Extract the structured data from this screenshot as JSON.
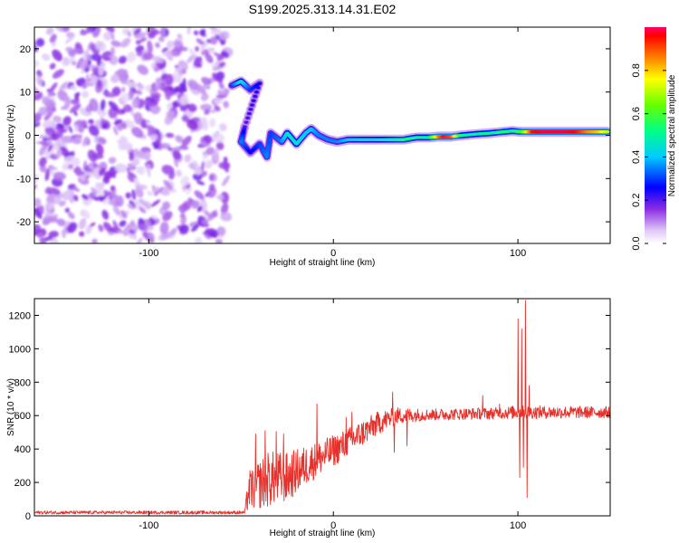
{
  "title": "S199.2025.313.14.31.E02",
  "chart_data": [
    {
      "type": "heatmap",
      "xlabel": "Height of straight line (km)",
      "ylabel": "Frequency (Hz)",
      "xlim": [
        -162,
        150
      ],
      "ylim": [
        -25,
        25
      ],
      "xticks": [
        {
          "value": -100,
          "label": "-100"
        },
        {
          "value": 0,
          "label": "0"
        },
        {
          "value": 100,
          "label": "100"
        }
      ],
      "yticks": [
        {
          "value": 20,
          "label": "20"
        },
        {
          "value": 10,
          "label": "10"
        },
        {
          "value": 0,
          "label": "0"
        },
        {
          "value": -10,
          "label": "-10"
        },
        {
          "value": -20,
          "label": "-20"
        }
      ],
      "noise_region_x": [
        -162,
        -58
      ],
      "ridge": [
        {
          "x": -55,
          "y": 11.5,
          "a": 0.3
        },
        {
          "x": -50,
          "y": 12.5,
          "a": 0.45
        },
        {
          "x": -45,
          "y": 10.5,
          "a": 0.3
        },
        {
          "x": -40,
          "y": 12.0,
          "a": 0.25
        },
        {
          "x": -48,
          "y": 2.0,
          "a": 0.2
        },
        {
          "x": -50,
          "y": -1.5,
          "a": 0.35
        },
        {
          "x": -45,
          "y": -4.0,
          "a": 0.25
        },
        {
          "x": -40,
          "y": -2.0,
          "a": 0.3
        },
        {
          "x": -36,
          "y": -5.0,
          "a": 0.35
        },
        {
          "x": -34,
          "y": 0.5,
          "a": 0.3
        },
        {
          "x": -28,
          "y": -1.5,
          "a": 0.35
        },
        {
          "x": -25,
          "y": 0.5,
          "a": 0.45
        },
        {
          "x": -20,
          "y": -2.0,
          "a": 0.45
        },
        {
          "x": -15,
          "y": 0.5,
          "a": 0.4
        },
        {
          "x": -12,
          "y": 1.5,
          "a": 0.4
        },
        {
          "x": -8,
          "y": 0.0,
          "a": 0.35
        },
        {
          "x": -3,
          "y": -1.0,
          "a": 0.35
        },
        {
          "x": 2,
          "y": -1.5,
          "a": 0.35
        },
        {
          "x": 8,
          "y": -1.0,
          "a": 0.4
        },
        {
          "x": 15,
          "y": -1.0,
          "a": 0.45
        },
        {
          "x": 22,
          "y": -1.0,
          "a": 0.45
        },
        {
          "x": 30,
          "y": -1.0,
          "a": 0.5
        },
        {
          "x": 38,
          "y": -1.0,
          "a": 0.55
        },
        {
          "x": 45,
          "y": -0.5,
          "a": 0.5
        },
        {
          "x": 52,
          "y": -0.5,
          "a": 0.5
        },
        {
          "x": 57,
          "y": -0.3,
          "a": 0.85
        },
        {
          "x": 60,
          "y": -0.3,
          "a": 0.95
        },
        {
          "x": 64,
          "y": -0.3,
          "a": 0.9
        },
        {
          "x": 70,
          "y": 0.0,
          "a": 0.5
        },
        {
          "x": 78,
          "y": 0.3,
          "a": 0.5
        },
        {
          "x": 85,
          "y": 0.5,
          "a": 0.5
        },
        {
          "x": 92,
          "y": 0.8,
          "a": 0.55
        },
        {
          "x": 97,
          "y": 1.0,
          "a": 0.5
        },
        {
          "x": 102,
          "y": 0.8,
          "a": 0.6
        },
        {
          "x": 108,
          "y": 0.8,
          "a": 0.95
        },
        {
          "x": 114,
          "y": 0.8,
          "a": 0.98
        },
        {
          "x": 120,
          "y": 0.8,
          "a": 0.98
        },
        {
          "x": 126,
          "y": 0.8,
          "a": 0.98
        },
        {
          "x": 132,
          "y": 0.8,
          "a": 0.95
        },
        {
          "x": 138,
          "y": 0.8,
          "a": 0.85
        },
        {
          "x": 144,
          "y": 0.8,
          "a": 0.8
        },
        {
          "x": 149,
          "y": 0.8,
          "a": 0.7
        }
      ],
      "colorbar": {
        "label": "Normalized spectral amplitude",
        "range": [
          0,
          1
        ],
        "ticks": [
          {
            "value": 0.0,
            "label": "0.0"
          },
          {
            "value": 0.2,
            "label": "0.2"
          },
          {
            "value": 0.4,
            "label": "0.4"
          },
          {
            "value": 0.6,
            "label": "0.6"
          },
          {
            "value": 0.8,
            "label": "0.8"
          }
        ]
      }
    },
    {
      "type": "line",
      "xlabel": "Height of straight line (km)",
      "ylabel": "SNR (10 * v/v)",
      "xlim": [
        -162,
        150
      ],
      "ylim": [
        0,
        1300
      ],
      "xticks": [
        {
          "value": -100,
          "label": "-100"
        },
        {
          "value": 0,
          "label": "0"
        },
        {
          "value": 100,
          "label": "100"
        }
      ],
      "yticks": [
        {
          "value": 0,
          "label": "0"
        },
        {
          "value": 200,
          "label": "200"
        },
        {
          "value": 400,
          "label": "400"
        },
        {
          "value": 600,
          "label": "600"
        },
        {
          "value": 800,
          "label": "800"
        },
        {
          "value": 1000,
          "label": "1000"
        },
        {
          "value": 1200,
          "label": "1200"
        }
      ],
      "series": [
        {
          "name": "SNR",
          "color": "#e8302a",
          "segments": [
            {
              "x": -162,
              "base": 20,
              "spread": 10
            },
            {
              "x": -48,
              "base": 20,
              "spread": 10
            },
            {
              "x": -46,
              "base": 150,
              "spread": 120
            },
            {
              "x": -35,
              "base": 220,
              "spread": 170
            },
            {
              "x": -25,
              "base": 230,
              "spread": 150
            },
            {
              "x": -15,
              "base": 300,
              "spread": 120
            },
            {
              "x": -5,
              "base": 360,
              "spread": 100
            },
            {
              "x": 5,
              "base": 420,
              "spread": 90
            },
            {
              "x": 15,
              "base": 490,
              "spread": 80
            },
            {
              "x": 25,
              "base": 560,
              "spread": 70
            },
            {
              "x": 35,
              "base": 600,
              "spread": 50
            },
            {
              "x": 50,
              "base": 605,
              "spread": 35
            },
            {
              "x": 70,
              "base": 610,
              "spread": 35
            },
            {
              "x": 90,
              "base": 615,
              "spread": 35
            },
            {
              "x": 98,
              "base": 620,
              "spread": 40
            },
            {
              "x": 150,
              "base": 620,
              "spread": 35
            }
          ],
          "spikes": [
            {
              "x": -42,
              "y": 490
            },
            {
              "x": -37,
              "y": 510
            },
            {
              "x": -31,
              "y": 505
            },
            {
              "x": -27,
              "y": 490
            },
            {
              "x": -9,
              "y": 670
            },
            {
              "x": 7,
              "y": 590
            },
            {
              "x": 10,
              "y": 620
            },
            {
              "x": 32,
              "y": 740
            },
            {
              "x": 33,
              "y": 380
            },
            {
              "x": 40,
              "y": 420
            },
            {
              "x": 81,
              "y": 720
            },
            {
              "x": 90,
              "y": 670
            },
            {
              "x": 93,
              "y": 600
            },
            {
              "x": 100,
              "y": 1180
            },
            {
              "x": 101,
              "y": 230
            },
            {
              "x": 102,
              "y": 1120
            },
            {
              "x": 103,
              "y": 290
            },
            {
              "x": 104,
              "y": 1290
            },
            {
              "x": 105,
              "y": 110
            },
            {
              "x": 106,
              "y": 780
            }
          ]
        }
      ]
    }
  ]
}
